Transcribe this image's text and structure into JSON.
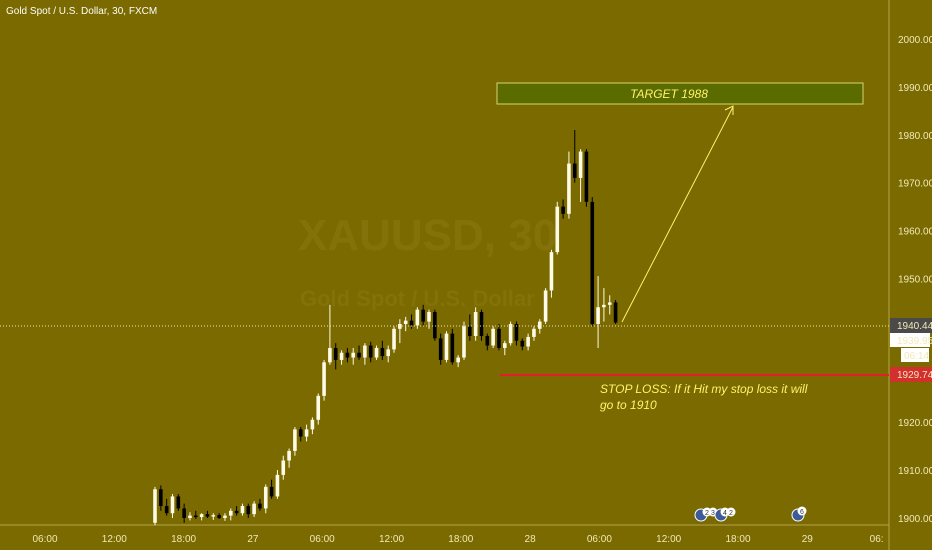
{
  "header": {
    "title": "Gold Spot / U.S. Dollar, 30, FXCM"
  },
  "watermark": {
    "symbol": "XAUUSD, 30",
    "subtitle": "Gold Spot / U.S. Dollar"
  },
  "colors": {
    "background": "#7a6a00",
    "bull_candle": "#fffbe6",
    "bear_candle": "#000000",
    "target_box": "#5a6b00",
    "annotation_text": "#fff36b",
    "stop_line": "#e0202a",
    "stop_tag": "#d32f2f",
    "price_tag": "#4a4a4a"
  },
  "chart_data": {
    "type": "candlestick",
    "x_ticks": [
      "06:00",
      "12:00",
      "18:00",
      "27",
      "06:00",
      "12:00",
      "18:00",
      "28",
      "06:00",
      "12:00",
      "18:00",
      "29",
      "06:"
    ],
    "y_ticks": [
      1900,
      1910,
      1920,
      1930,
      1940,
      1950,
      1960,
      1970,
      1980,
      1990,
      2000
    ],
    "ylim": [
      1897.5,
      2005
    ],
    "ohlc": [
      [
        1899.0,
        1906.5,
        1898.5,
        1906.0
      ],
      [
        1906.0,
        1906.8,
        1901.5,
        1902.5
      ],
      [
        1902.5,
        1904.0,
        1900.5,
        1901.0
      ],
      [
        1901.0,
        1905.0,
        1900.0,
        1904.5
      ],
      [
        1904.5,
        1905.0,
        1901.5,
        1902.0
      ],
      [
        1902.0,
        1903.0,
        1899.0,
        1900.0
      ],
      [
        1900.0,
        1901.2,
        1899.5,
        1900.5
      ],
      [
        1900.5,
        1901.5,
        1899.8,
        1900.2
      ],
      [
        1900.2,
        1901.0,
        1899.5,
        1900.8
      ],
      [
        1900.8,
        1901.5,
        1900.0,
        1900.3
      ],
      [
        1900.3,
        1901.0,
        1899.6,
        1900.6
      ],
      [
        1900.6,
        1901.0,
        1899.8,
        1900.0
      ],
      [
        1900.0,
        1901.0,
        1899.4,
        1900.5
      ],
      [
        1900.5,
        1902.0,
        1899.5,
        1901.5
      ],
      [
        1901.5,
        1902.5,
        1900.5,
        1901.0
      ],
      [
        1901.0,
        1903.0,
        1900.5,
        1902.5
      ],
      [
        1902.5,
        1903.0,
        1900.0,
        1900.8
      ],
      [
        1900.8,
        1903.5,
        1900.2,
        1903.0
      ],
      [
        1903.0,
        1904.0,
        1901.5,
        1902.0
      ],
      [
        1902.0,
        1907.0,
        1901.0,
        1906.5
      ],
      [
        1906.5,
        1908.0,
        1904.0,
        1904.5
      ],
      [
        1904.5,
        1910.0,
        1904.0,
        1909.0
      ],
      [
        1909.0,
        1913.0,
        1908.0,
        1912.0
      ],
      [
        1912.0,
        1914.5,
        1910.5,
        1914.0
      ],
      [
        1914.0,
        1919.0,
        1913.0,
        1918.5
      ],
      [
        1918.5,
        1919.0,
        1916.0,
        1917.0
      ],
      [
        1917.0,
        1919.5,
        1916.0,
        1918.5
      ],
      [
        1918.5,
        1921.0,
        1917.5,
        1920.5
      ],
      [
        1920.5,
        1926.0,
        1919.5,
        1925.5
      ],
      [
        1925.5,
        1933.0,
        1924.5,
        1932.5
      ],
      [
        1932.5,
        1944.5,
        1932.0,
        1935.5
      ],
      [
        1935.5,
        1936.5,
        1931.0,
        1933.0
      ],
      [
        1933.0,
        1935.0,
        1932.0,
        1934.5
      ],
      [
        1934.5,
        1935.5,
        1932.5,
        1933.5
      ],
      [
        1933.5,
        1935.5,
        1932.0,
        1934.5
      ],
      [
        1934.5,
        1936.0,
        1933.0,
        1933.5
      ],
      [
        1933.5,
        1936.5,
        1932.0,
        1936.0
      ],
      [
        1936.0,
        1936.8,
        1932.5,
        1933.5
      ],
      [
        1933.5,
        1936.0,
        1933.0,
        1935.5
      ],
      [
        1935.5,
        1937.0,
        1933.0,
        1933.8
      ],
      [
        1933.8,
        1936.0,
        1932.5,
        1935.2
      ],
      [
        1935.2,
        1940.0,
        1934.5,
        1939.5
      ],
      [
        1939.5,
        1941.5,
        1936.5,
        1940.5
      ],
      [
        1940.5,
        1942.0,
        1939.0,
        1941.2
      ],
      [
        1941.2,
        1942.5,
        1939.5,
        1940.2
      ],
      [
        1940.2,
        1944.0,
        1939.5,
        1943.5
      ],
      [
        1943.5,
        1944.5,
        1940.0,
        1941.0
      ],
      [
        1941.0,
        1943.5,
        1939.5,
        1943.0
      ],
      [
        1943.0,
        1943.5,
        1937.0,
        1937.5
      ],
      [
        1937.5,
        1938.5,
        1932.0,
        1933.0
      ],
      [
        1933.0,
        1939.0,
        1932.5,
        1938.5
      ],
      [
        1938.5,
        1939.5,
        1932.0,
        1932.5
      ],
      [
        1932.5,
        1934.0,
        1931.5,
        1933.5
      ],
      [
        1933.5,
        1941.0,
        1933.0,
        1940.0
      ],
      [
        1940.0,
        1942.5,
        1937.0,
        1938.0
      ],
      [
        1938.0,
        1944.0,
        1937.0,
        1943.0
      ],
      [
        1943.0,
        1943.5,
        1937.0,
        1938.0
      ],
      [
        1938.0,
        1938.5,
        1935.0,
        1936.0
      ],
      [
        1936.0,
        1940.0,
        1935.5,
        1939.5
      ],
      [
        1939.5,
        1940.5,
        1935.0,
        1935.5
      ],
      [
        1935.5,
        1937.0,
        1934.0,
        1936.5
      ],
      [
        1936.5,
        1941.0,
        1936.0,
        1940.5
      ],
      [
        1940.5,
        1941.0,
        1936.0,
        1937.0
      ],
      [
        1937.0,
        1937.5,
        1935.0,
        1935.8
      ],
      [
        1935.8,
        1938.5,
        1935.0,
        1937.8
      ],
      [
        1937.8,
        1940.0,
        1937.0,
        1939.5
      ],
      [
        1939.5,
        1941.5,
        1938.5,
        1941.0
      ],
      [
        1941.0,
        1948.0,
        1940.5,
        1947.5
      ],
      [
        1947.5,
        1956.0,
        1946.0,
        1955.5
      ],
      [
        1955.5,
        1966.0,
        1955.0,
        1965.0
      ],
      [
        1965.0,
        1966.5,
        1962.5,
        1963.5
      ],
      [
        1963.5,
        1976.5,
        1962.5,
        1974.0
      ],
      [
        1974.0,
        1981.0,
        1970.0,
        1971.0
      ],
      [
        1971.0,
        1977.0,
        1966.0,
        1976.5
      ],
      [
        1976.5,
        1977.0,
        1965.0,
        1966.0
      ],
      [
        1966.0,
        1967.0,
        1940.0,
        1940.5
      ],
      [
        1940.5,
        1950.5,
        1935.5,
        1944.0
      ],
      [
        1944.0,
        1948.0,
        1941.0,
        1944.5
      ],
      [
        1944.5,
        1946.5,
        1942.5,
        1945.0
      ],
      [
        1945.0,
        1945.5,
        1940.5,
        1940.8
      ]
    ],
    "annotations": {
      "target_label": "TARGET 1988",
      "stop_label_line1": "STOP LOSS: If it Hit my stop loss it will",
      "stop_label_line2": "go to 1910",
      "stop_level": 1929.74,
      "current_level": 1940.44
    },
    "price_tags": {
      "current": "1940.44",
      "bid": "1939.95",
      "countdown": "06:14",
      "stop": "1929.74"
    },
    "event_icons": [
      "2",
      "3",
      "4",
      "2",
      "6"
    ]
  }
}
